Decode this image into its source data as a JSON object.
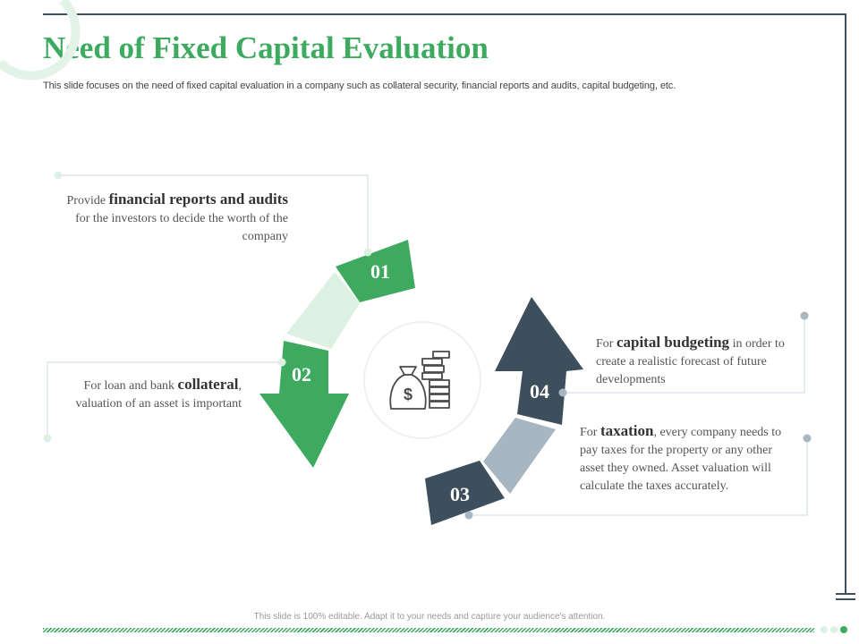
{
  "title": "Need of Fixed Capital Evaluation",
  "subtitle": "This slide focuses on the need of fixed capital evaluation in a company such as collateral security, financial reports and audits, capital budgeting, etc.",
  "center_icon": "money-bag-and-coins-icon",
  "colors": {
    "green": "#3daa5f",
    "light_green": "#dcf1e2",
    "slate": "#3d4f5c",
    "grey_blue": "#a8b6c1"
  },
  "steps": [
    {
      "number": "01",
      "pre": "Provide",
      "highlight": "financial reports and audits",
      "post": "for the investors to decide the worth of the company"
    },
    {
      "number": "02",
      "pre": "For loan and bank",
      "highlight": "collateral",
      "post": ", valuation of an asset is important"
    },
    {
      "number": "03",
      "pre": "For",
      "highlight": "taxation",
      "post": ", every company needs to pay taxes for the property or any other asset they owned. Asset valuation will calculate the taxes accurately."
    },
    {
      "number": "04",
      "pre": "For",
      "highlight": "capital budgeting",
      "post": "in order to create a realistic forecast of future developments"
    }
  ],
  "footer": "This slide is 100% editable.  Adapt it to your needs and capture your audience's attention."
}
